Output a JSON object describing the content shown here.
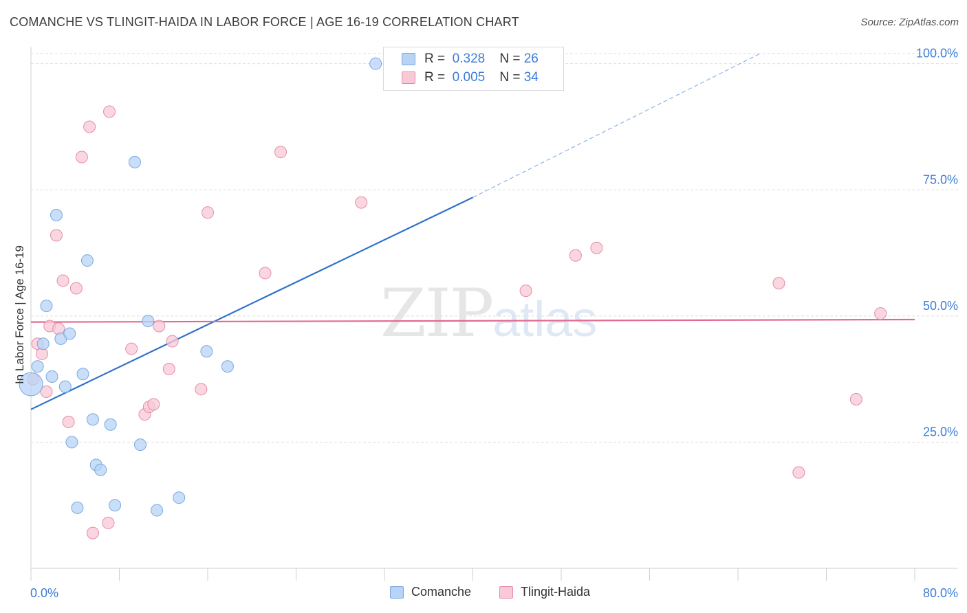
{
  "title": "COMANCHE VS TLINGIT-HAIDA IN LABOR FORCE | AGE 16-19 CORRELATION CHART",
  "source": "Source: ZipAtlas.com",
  "watermark": {
    "zip": "ZIP",
    "atlas": "atlas"
  },
  "legend": {
    "rows": [
      {
        "r_label": "R =",
        "r_value": "0.328",
        "n_label": "N =",
        "n_value": "26"
      },
      {
        "r_label": "R =",
        "r_value": "0.005",
        "n_label": "N =",
        "n_value": "34"
      }
    ]
  },
  "bottom_legend": {
    "comanche": "Comanche",
    "tlingit": "Tlingit-Haida"
  },
  "colors": {
    "comanche_fill": "#b7d3f5",
    "comanche_stroke": "#7aa8e0",
    "comanche_line": "#2f72c9",
    "tlingit_fill": "#f8c9d6",
    "tlingit_stroke": "#e88aa6",
    "tlingit_line": "#e36a8e",
    "axis_label": "#3b7dd8",
    "grid": "#dedede"
  },
  "chart_data": {
    "type": "scatter",
    "title": "COMANCHE VS TLINGIT-HAIDA IN LABOR FORCE | AGE 16-19 CORRELATION CHART",
    "xlabel": "",
    "ylabel": "In Labor Force | Age 16-19",
    "xlim": [
      0,
      80
    ],
    "ylim": [
      0,
      102
    ],
    "x_tick_labels": [
      "0.0%",
      "80.0%"
    ],
    "y_ticks": [
      25,
      50,
      75,
      100
    ],
    "y_tick_labels": [
      "25.0%",
      "50.0%",
      "75.0%",
      "100.0%"
    ],
    "grid": true,
    "legend_position": "top-center",
    "series": [
      {
        "name": "Comanche",
        "R": 0.328,
        "N": 26,
        "trend": {
          "x0": 0,
          "y0": 31.5,
          "x1": 40,
          "y1": 73.5,
          "dashed_to_x": 66,
          "dashed_to_y": 102
        },
        "points": [
          [
            0,
            36.5
          ],
          [
            0.6,
            40
          ],
          [
            1.1,
            44.5
          ],
          [
            1.4,
            52
          ],
          [
            1.9,
            38
          ],
          [
            2.3,
            70
          ],
          [
            2.7,
            45.5
          ],
          [
            3.1,
            36
          ],
          [
            3.5,
            46.5
          ],
          [
            3.7,
            25
          ],
          [
            4.2,
            12
          ],
          [
            4.7,
            38.5
          ],
          [
            5.1,
            61
          ],
          [
            5.6,
            29.5
          ],
          [
            5.9,
            20.5
          ],
          [
            6.3,
            19.5
          ],
          [
            7.2,
            28.5
          ],
          [
            7.6,
            12.5
          ],
          [
            9.4,
            80.5
          ],
          [
            9.9,
            24.5
          ],
          [
            10.6,
            49
          ],
          [
            11.4,
            11.5
          ],
          [
            13.4,
            14
          ],
          [
            15.9,
            43
          ],
          [
            17.8,
            40
          ],
          [
            31.2,
            100
          ]
        ]
      },
      {
        "name": "Tlingit-Haida",
        "R": 0.005,
        "N": 34,
        "trend": {
          "x0": 0,
          "y0": 48.8,
          "x1": 80,
          "y1": 49.3
        },
        "points": [
          [
            0.2,
            37.5
          ],
          [
            0.6,
            44.5
          ],
          [
            1.0,
            42.5
          ],
          [
            1.4,
            35
          ],
          [
            1.7,
            48
          ],
          [
            2.3,
            66
          ],
          [
            2.5,
            47.5
          ],
          [
            2.9,
            57
          ],
          [
            3.4,
            29
          ],
          [
            4.1,
            55.5
          ],
          [
            4.6,
            81.5
          ],
          [
            5.3,
            87.5
          ],
          [
            5.6,
            7
          ],
          [
            7.0,
            9
          ],
          [
            7.1,
            90.5
          ],
          [
            9.1,
            43.5
          ],
          [
            10.3,
            30.5
          ],
          [
            10.7,
            32
          ],
          [
            11.1,
            32.5
          ],
          [
            11.6,
            48
          ],
          [
            12.5,
            39.5
          ],
          [
            12.8,
            45
          ],
          [
            15.4,
            35.5
          ],
          [
            16.0,
            70.5
          ],
          [
            21.2,
            58.5
          ],
          [
            22.6,
            82.5
          ],
          [
            29.9,
            72.5
          ],
          [
            44.8,
            55
          ],
          [
            49.3,
            62
          ],
          [
            51.2,
            63.5
          ],
          [
            67.7,
            56.5
          ],
          [
            69.5,
            19
          ],
          [
            74.7,
            33.5
          ],
          [
            76.9,
            50.5
          ]
        ]
      }
    ]
  }
}
